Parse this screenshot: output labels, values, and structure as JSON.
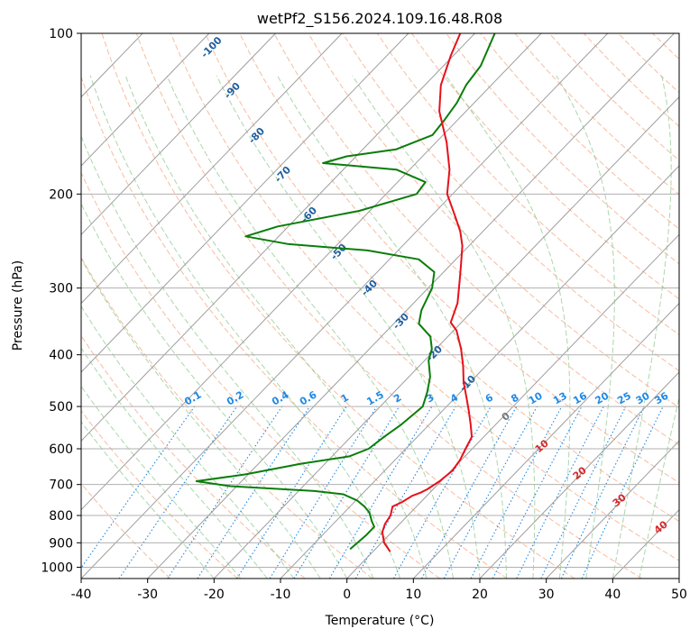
{
  "chart_data": {
    "type": "skew-t",
    "title": "wetPf2_S156.2024.109.16.48.R08",
    "xlabel": "Temperature (°C)",
    "ylabel": "Pressure (hPa)",
    "xlim": [
      -40,
      50
    ],
    "ylim": [
      1050,
      100
    ],
    "y_scale": "log",
    "grid": true,
    "x_ticks": [
      "-40",
      "-30",
      "-20",
      "-10",
      "0",
      "10",
      "20",
      "30",
      "40",
      "50"
    ],
    "y_ticks": [
      "100",
      "200",
      "300",
      "400",
      "500",
      "600",
      "700",
      "800",
      "900",
      "1000"
    ],
    "colors": {
      "temperature": "#e8101a",
      "dewpoint": "#0a7d0a",
      "dry_adiabats": "#f4a582",
      "moist_adiabats": "#8ec98e",
      "mixing_ratio": "#1e88e5",
      "isotherm_label": "#1f5fa0",
      "wet_bulb_label_warm": "#d62828",
      "wet_bulb_label_zero": "#777777",
      "isotherms": "#9e9e9e",
      "isobars": "#b0b0b0"
    },
    "isotherm_labels": [
      "-100",
      "-90",
      "-80",
      "-70",
      "-60",
      "-50",
      "-40",
      "-30",
      "-20",
      "-10"
    ],
    "mixing_ratio_labels": [
      "0.1",
      "0.2",
      "0.4",
      "0.6",
      "1",
      "1.5",
      "2",
      "3",
      "4",
      "6",
      "8",
      "10",
      "13",
      "16",
      "20",
      "25",
      "30",
      "36"
    ],
    "wet_bulb_labels": [
      "0",
      "10",
      "20",
      "30",
      "40"
    ],
    "series": [
      {
        "name": "temperature",
        "points": [
          {
            "p": 935,
            "t": 2.6
          },
          {
            "p": 900,
            "t": 0.4
          },
          {
            "p": 860,
            "t": -1.4
          },
          {
            "p": 830,
            "t": -2.2
          },
          {
            "p": 800,
            "t": -2.6
          },
          {
            "p": 770,
            "t": -3.6
          },
          {
            "p": 755,
            "t": -2.8
          },
          {
            "p": 735,
            "t": -2.2
          },
          {
            "p": 725,
            "t": -1.4
          },
          {
            "p": 715,
            "t": -0.9
          },
          {
            "p": 690,
            "t": -0.2
          },
          {
            "p": 660,
            "t": 0.2
          },
          {
            "p": 630,
            "t": -0.2
          },
          {
            "p": 600,
            "t": -1.0
          },
          {
            "p": 570,
            "t": -1.8
          },
          {
            "p": 540,
            "t": -3.8
          },
          {
            "p": 510,
            "t": -6.0
          },
          {
            "p": 480,
            "t": -8.4
          },
          {
            "p": 450,
            "t": -11.0
          },
          {
            "p": 420,
            "t": -13.4
          },
          {
            "p": 390,
            "t": -16.2
          },
          {
            "p": 360,
            "t": -19.6
          },
          {
            "p": 348,
            "t": -21.6
          },
          {
            "p": 320,
            "t": -23.4
          },
          {
            "p": 290,
            "t": -26.4
          },
          {
            "p": 270,
            "t": -28.6
          },
          {
            "p": 250,
            "t": -31.0
          },
          {
            "p": 235,
            "t": -33.4
          },
          {
            "p": 220,
            "t": -36.4
          },
          {
            "p": 200,
            "t": -40.8
          },
          {
            "p": 180,
            "t": -44.0
          },
          {
            "p": 160,
            "t": -48.4
          },
          {
            "p": 140,
            "t": -54.0
          },
          {
            "p": 125,
            "t": -57.6
          },
          {
            "p": 110,
            "t": -60.4
          },
          {
            "p": 100,
            "t": -62.2
          }
        ]
      },
      {
        "name": "dewpoint",
        "points": [
          {
            "p": 925,
            "t": -3.8
          },
          {
            "p": 900,
            "t": -3.6
          },
          {
            "p": 870,
            "t": -3.4
          },
          {
            "p": 840,
            "t": -3.4
          },
          {
            "p": 820,
            "t": -4.6
          },
          {
            "p": 790,
            "t": -6.2
          },
          {
            "p": 770,
            "t": -7.8
          },
          {
            "p": 750,
            "t": -9.8
          },
          {
            "p": 730,
            "t": -12.8
          },
          {
            "p": 720,
            "t": -17.6
          },
          {
            "p": 705,
            "t": -31.0
          },
          {
            "p": 690,
            "t": -36.8
          },
          {
            "p": 670,
            "t": -30.4
          },
          {
            "p": 640,
            "t": -23.6
          },
          {
            "p": 620,
            "t": -17.4
          },
          {
            "p": 600,
            "t": -15.6
          },
          {
            "p": 570,
            "t": -15.0
          },
          {
            "p": 540,
            "t": -14.2
          },
          {
            "p": 500,
            "t": -13.6
          },
          {
            "p": 470,
            "t": -15.0
          },
          {
            "p": 440,
            "t": -16.8
          },
          {
            "p": 410,
            "t": -19.4
          },
          {
            "p": 390,
            "t": -20.6
          },
          {
            "p": 370,
            "t": -22.6
          },
          {
            "p": 350,
            "t": -26.2
          },
          {
            "p": 330,
            "t": -27.8
          },
          {
            "p": 300,
            "t": -29.4
          },
          {
            "p": 280,
            "t": -31.4
          },
          {
            "p": 265,
            "t": -35.6
          },
          {
            "p": 255,
            "t": -44.6
          },
          {
            "p": 248,
            "t": -57.6
          },
          {
            "p": 240,
            "t": -65.0
          },
          {
            "p": 230,
            "t": -61.6
          },
          {
            "p": 215,
            "t": -51.6
          },
          {
            "p": 200,
            "t": -45.4
          },
          {
            "p": 190,
            "t": -45.8
          },
          {
            "p": 180,
            "t": -52.0
          },
          {
            "p": 175,
            "t": -64.0
          },
          {
            "p": 170,
            "t": -61.4
          },
          {
            "p": 165,
            "t": -55.0
          },
          {
            "p": 155,
            "t": -51.6
          },
          {
            "p": 145,
            "t": -52.0
          },
          {
            "p": 135,
            "t": -52.6
          },
          {
            "p": 125,
            "t": -53.8
          },
          {
            "p": 115,
            "t": -54.4
          },
          {
            "p": 100,
            "t": -57.0
          }
        ]
      }
    ]
  }
}
